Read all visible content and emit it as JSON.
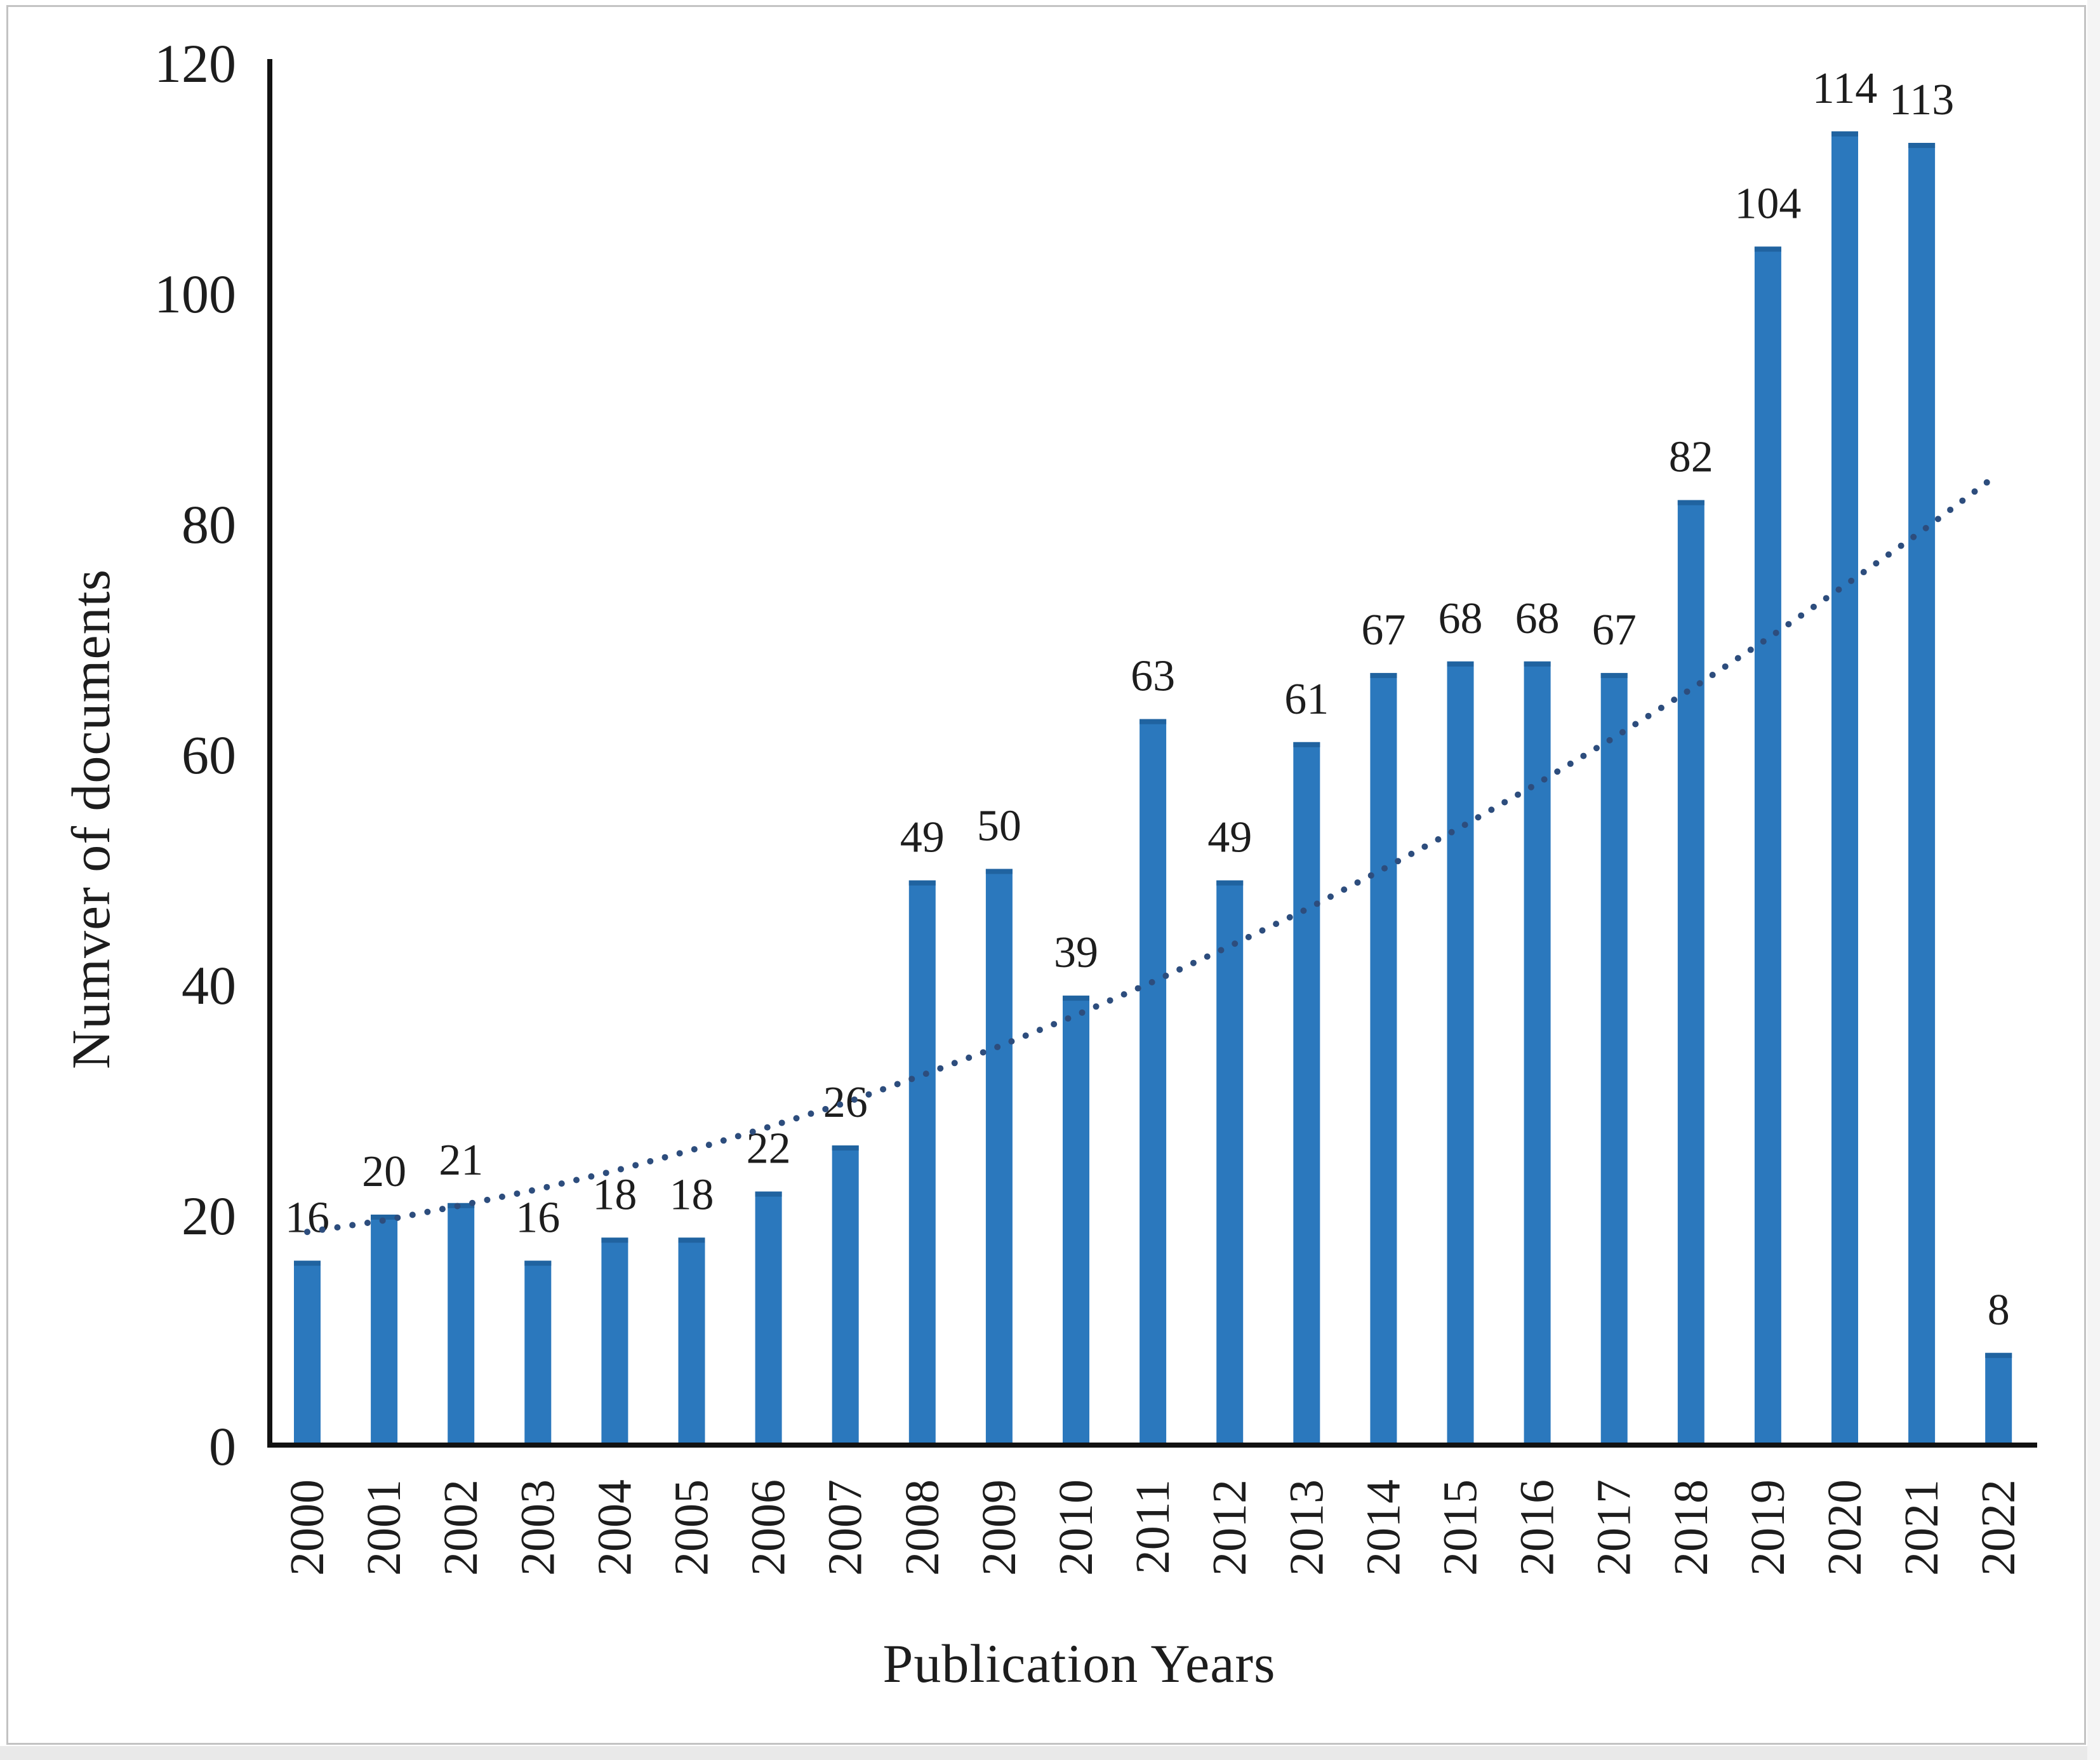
{
  "chart_data": {
    "type": "bar",
    "title": "",
    "xlabel": "Publication Years",
    "ylabel": "Numver of documents",
    "categories": [
      "2000",
      "2001",
      "2002",
      "2003",
      "2004",
      "2005",
      "2006",
      "2007",
      "2008",
      "2009",
      "2010",
      "2011",
      "2012",
      "2013",
      "2014",
      "2015",
      "2016",
      "2017",
      "2018",
      "2019",
      "2020",
      "2021",
      "2022"
    ],
    "values": [
      16,
      20,
      21,
      16,
      18,
      18,
      22,
      26,
      49,
      50,
      39,
      63,
      49,
      61,
      67,
      68,
      68,
      67,
      82,
      104,
      114,
      113,
      8
    ],
    "data_labels": [
      "16",
      "20",
      "21",
      "16",
      "18",
      "18",
      "22",
      "26",
      "49",
      "50",
      "39",
      "63",
      "49",
      "61",
      "67",
      "68",
      "68",
      "67",
      "82",
      "104",
      "114",
      "113",
      "8"
    ],
    "y_ticks": [
      0,
      20,
      40,
      60,
      80,
      100,
      120
    ],
    "y_tick_labels": [
      "0",
      "20",
      "40",
      "60",
      "80",
      "100",
      "120"
    ],
    "ylim": [
      0,
      120
    ],
    "grid": "off",
    "legend": "none",
    "bar_label_position": "outside-end",
    "x_tick_rotation_degrees": -90,
    "trend": {
      "style": "dotted",
      "shape": "upward-curve",
      "values_by_year": [
        18.5,
        19.5,
        20.8,
        22.2,
        23.8,
        25.6,
        27.6,
        29.7,
        32.1,
        34.6,
        37.3,
        40.2,
        43.3,
        46.5,
        50.0,
        53.6,
        57.4,
        61.4,
        65.6,
        70.0,
        74.6,
        79.3,
        84.3
      ]
    },
    "colors": {
      "bar": "#2b78bd",
      "bar_top_edge": "#2063a0",
      "trend_dot": "#2d4d7d",
      "axis": "#121212",
      "text": "#1d1d1d",
      "figure_border": "#c3c3c3",
      "background": "#ffffff"
    }
  }
}
